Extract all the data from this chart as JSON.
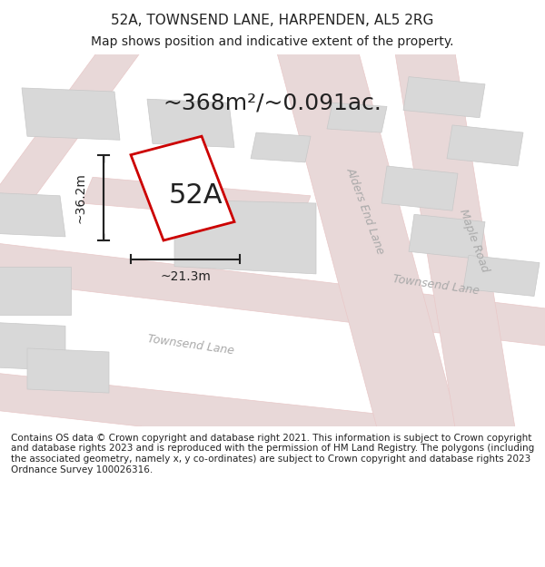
{
  "title_line1": "52A, TOWNSEND LANE, HARPENDEN, AL5 2RG",
  "title_line2": "Map shows position and indicative extent of the property.",
  "area_label": "~368m²/~0.091ac.",
  "plot_label": "52A",
  "dim_height": "~36.2m",
  "dim_width": "~21.3m",
  "bg_color": "#f5f5f5",
  "map_bg": "#f0eeee",
  "road_color": "#e8c8c8",
  "road_fill": "#e8d8d8",
  "building_fill": "#d8d8d8",
  "building_edge": "#c8c8c8",
  "plot_fill": "#ffffff",
  "plot_edge": "#cc0000",
  "dim_color": "#222222",
  "text_color": "#222222",
  "road_text_color": "#888888",
  "footer_text": "Contains OS data © Crown copyright and database right 2021. This information is subject to Crown copyright and database rights 2023 and is reproduced with the permission of HM Land Registry. The polygons (including the associated geometry, namely x, y co-ordinates) are subject to Crown copyright and database rights 2023 Ordnance Survey 100026316.",
  "figsize": [
    6.0,
    6.25
  ],
  "dpi": 100,
  "map_extent": [
    0,
    1,
    0,
    1
  ],
  "title_fontsize": 11,
  "subtitle_fontsize": 10,
  "area_fontsize": 18,
  "plot_label_fontsize": 22,
  "dim_fontsize": 10,
  "road_label_fontsize": 9,
  "footer_fontsize": 7.5
}
